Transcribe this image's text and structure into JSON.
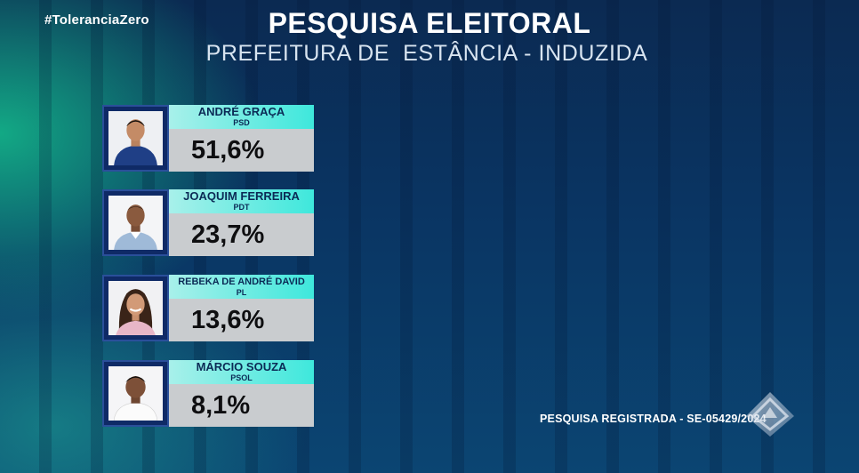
{
  "hashtag": "#ToleranciaZero",
  "title": "PESQUISA ELEITORAL",
  "subtitle": "PREFEITURA DE  ESTÂNCIA - INDUZIDA",
  "candidates": [
    {
      "name": "ANDRÉ GRAÇA",
      "party": "PSD",
      "percent": "51,6%",
      "value": 51.6,
      "photo": "candidate-photo-andre-graca"
    },
    {
      "name": "JOAQUIM FERREIRA",
      "party": "PDT",
      "percent": "23,7%",
      "value": 23.7,
      "photo": "candidate-photo-joaquim-ferreira"
    },
    {
      "name": "REBEKA DE ANDRÉ DAVID",
      "party": "PL",
      "percent": "13,6%",
      "value": 13.6,
      "photo": "candidate-photo-rebeka-de-andre-david"
    },
    {
      "name": "MÁRCIO SOUZA",
      "party": "PSOL",
      "percent": "8,1%",
      "value": 8.1,
      "photo": "candidate-photo-marcio-souza"
    }
  ],
  "footer": {
    "registered": "PESQUISA REGISTRADA - SE-05429/2024"
  },
  "colors": {
    "name_bar": "#3ee8dc",
    "percent_bar": "#c9cccf",
    "frame": "#0f2a66"
  },
  "logo": "broadcaster-logo-icon"
}
